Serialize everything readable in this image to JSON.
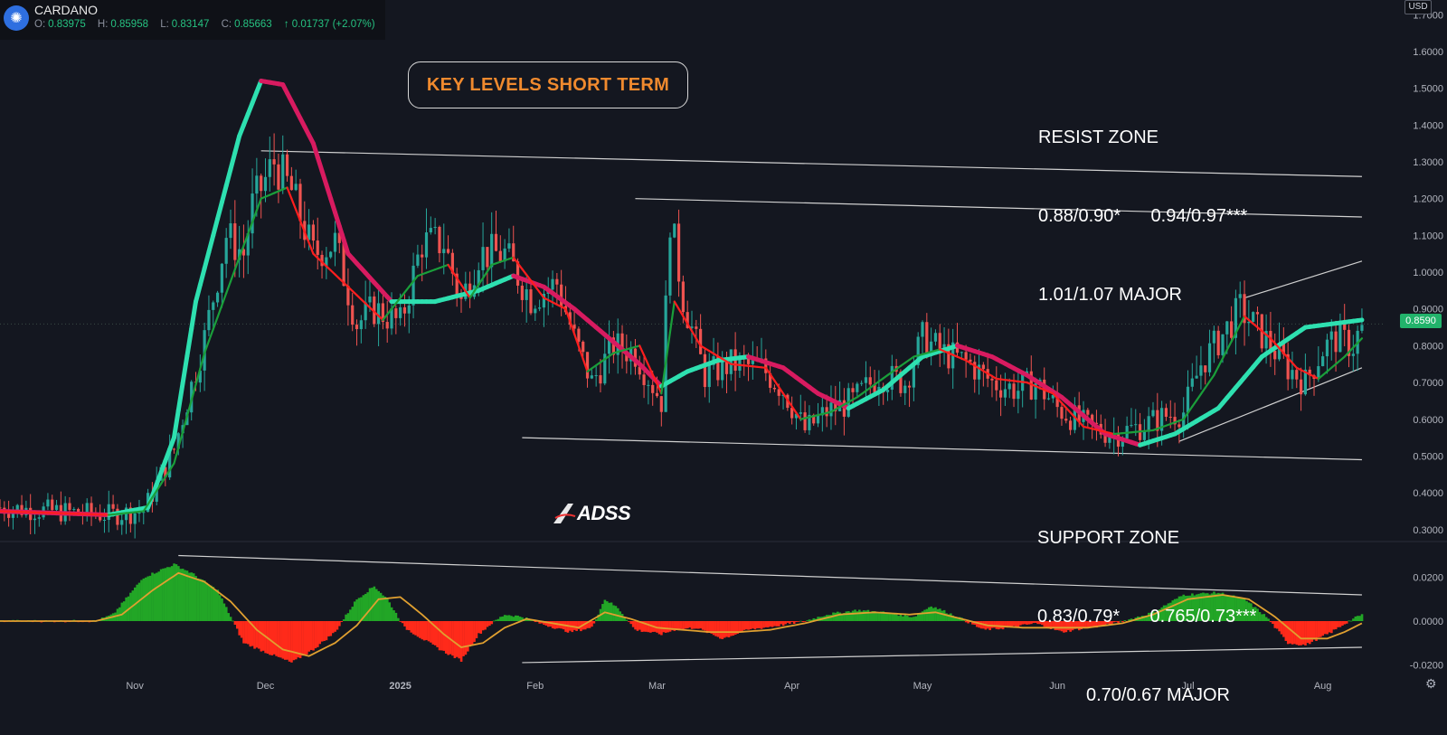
{
  "header": {
    "symbol": "CARDANO",
    "open_label": "O:",
    "open": "0.83975",
    "high_label": "H:",
    "high": "0.85958",
    "low_label": "L:",
    "low": "0.83147",
    "close_label": "C:",
    "close": "0.85663",
    "change": "↑ 0.01737 (+2.07%)",
    "logo_icon": "cardano-logo-icon"
  },
  "currency": "USD",
  "last_price": "0.8590",
  "title_box": "KEY LEVELS SHORT TERM",
  "resist_zone": {
    "title": "RESIST ZONE",
    "line1": "0.88/0.90*      0.94/0.97***",
    "line2": "1.01/1.07 MAJOR"
  },
  "support_zone": {
    "title": "SUPPORT ZONE",
    "line1": "0.83/0.79*      0.765/0.73***",
    "line2": "0.70/0.67 MAJOR"
  },
  "brand": "ADSS",
  "colors": {
    "background": "#141720",
    "up": "#26a69a",
    "down": "#ef5350",
    "fast_ma_up": "#1a9e3a",
    "fast_ma_down": "#ff1e1e",
    "slow_ma_up": "#2ee0b0",
    "slow_ma_down": "#d81b60",
    "hist_up": "#22a626",
    "hist_down": "#ff2a1a",
    "signal": "#e0a030",
    "annotation": "#ffffff",
    "title_text": "#f08a2e",
    "last_price": "#22b36b"
  },
  "chart_data": [
    {
      "type": "candlestick",
      "y_scale": "linear",
      "ylim": [
        0.27,
        1.74
      ],
      "y_ticks": [
        0.3,
        0.4,
        0.5,
        0.6,
        0.7,
        0.8,
        0.9,
        1.0,
        1.1,
        1.2,
        1.3,
        1.4,
        1.5,
        1.6,
        1.7
      ],
      "y_tick_labels": [
        "0.3000",
        "0.4000",
        "0.5000",
        "0.6000",
        "0.7000",
        "0.8000",
        "0.9000",
        "1.0000",
        "1.1000",
        "1.2000",
        "1.3000",
        "1.4000",
        "1.5000",
        "1.6000",
        "1.7000"
      ],
      "x_labels": [
        "Nov",
        "Dec",
        "2025",
        "Feb",
        "Mar",
        "Apr",
        "May",
        "Jun",
        "Jul",
        "Aug"
      ],
      "x_label_days": [
        31,
        61,
        92,
        123,
        151,
        182,
        212,
        243,
        273,
        304
      ],
      "x_range_days": [
        0,
        318
      ],
      "price_path": [
        [
          0,
          0.36
        ],
        [
          25,
          0.34
        ],
        [
          33,
          0.35
        ],
        [
          40,
          0.52
        ],
        [
          47,
          0.82
        ],
        [
          52,
          1.1
        ],
        [
          56,
          1.05
        ],
        [
          58,
          1.18
        ],
        [
          63,
          1.3
        ],
        [
          67,
          1.22
        ],
        [
          72,
          1.05
        ],
        [
          77,
          1.08
        ],
        [
          82,
          0.86
        ],
        [
          86,
          0.9
        ],
        [
          92,
          0.86
        ],
        [
          97,
          1.08
        ],
        [
          102,
          1.08
        ],
        [
          106,
          0.92
        ],
        [
          110,
          1.05
        ],
        [
          116,
          1.05
        ],
        [
          122,
          0.93
        ],
        [
          128,
          0.97
        ],
        [
          132,
          0.82
        ],
        [
          136,
          0.7
        ],
        [
          141,
          0.8
        ],
        [
          146,
          0.78
        ],
        [
          152,
          0.65
        ],
        [
          154,
          1.15
        ],
        [
          157,
          0.93
        ],
        [
          162,
          0.72
        ],
        [
          168,
          0.75
        ],
        [
          175,
          0.74
        ],
        [
          180,
          0.68
        ],
        [
          185,
          0.57
        ],
        [
          190,
          0.62
        ],
        [
          196,
          0.65
        ],
        [
          202,
          0.72
        ],
        [
          208,
          0.7
        ],
        [
          212,
          0.82
        ],
        [
          217,
          0.78
        ],
        [
          223,
          0.75
        ],
        [
          228,
          0.7
        ],
        [
          234,
          0.68
        ],
        [
          238,
          0.7
        ],
        [
          243,
          0.63
        ],
        [
          250,
          0.58
        ],
        [
          256,
          0.56
        ],
        [
          262,
          0.58
        ],
        [
          268,
          0.61
        ],
        [
          272,
          0.62
        ],
        [
          276,
          0.75
        ],
        [
          281,
          0.83
        ],
        [
          285,
          0.9
        ],
        [
          290,
          0.83
        ],
        [
          296,
          0.74
        ],
        [
          300,
          0.7
        ],
        [
          304,
          0.79
        ],
        [
          307,
          0.82
        ],
        [
          311,
          0.8
        ],
        [
          313,
          0.8566
        ]
      ],
      "slow_ma_path": [
        [
          0,
          0.35
        ],
        [
          25,
          0.34
        ],
        [
          34,
          0.36
        ],
        [
          40,
          0.55
        ],
        [
          45,
          0.92
        ],
        [
          55,
          1.37
        ],
        [
          60,
          1.52
        ],
        [
          65,
          1.51
        ],
        [
          72,
          1.35
        ],
        [
          80,
          1.05
        ],
        [
          90,
          0.92
        ],
        [
          100,
          0.92
        ],
        [
          110,
          0.95
        ],
        [
          118,
          0.99
        ],
        [
          125,
          0.96
        ],
        [
          132,
          0.9
        ],
        [
          140,
          0.82
        ],
        [
          147,
          0.75
        ],
        [
          152,
          0.69
        ],
        [
          158,
          0.73
        ],
        [
          165,
          0.76
        ],
        [
          172,
          0.77
        ],
        [
          180,
          0.74
        ],
        [
          188,
          0.67
        ],
        [
          195,
          0.63
        ],
        [
          203,
          0.68
        ],
        [
          212,
          0.77
        ],
        [
          220,
          0.8
        ],
        [
          228,
          0.77
        ],
        [
          236,
          0.72
        ],
        [
          244,
          0.66
        ],
        [
          254,
          0.56
        ],
        [
          262,
          0.53
        ],
        [
          270,
          0.56
        ],
        [
          280,
          0.63
        ],
        [
          290,
          0.77
        ],
        [
          300,
          0.85
        ],
        [
          313,
          0.87
        ]
      ],
      "fast_ma_path": [
        [
          0,
          0.35
        ],
        [
          25,
          0.34
        ],
        [
          33,
          0.35
        ],
        [
          40,
          0.48
        ],
        [
          47,
          0.78
        ],
        [
          55,
          1.04
        ],
        [
          60,
          1.2
        ],
        [
          66,
          1.23
        ],
        [
          72,
          1.05
        ],
        [
          80,
          0.96
        ],
        [
          88,
          0.87
        ],
        [
          96,
          0.99
        ],
        [
          103,
          1.02
        ],
        [
          108,
          0.93
        ],
        [
          113,
          1.02
        ],
        [
          118,
          1.04
        ],
        [
          125,
          0.93
        ],
        [
          130,
          0.9
        ],
        [
          135,
          0.73
        ],
        [
          141,
          0.78
        ],
        [
          147,
          0.8
        ],
        [
          152,
          0.67
        ],
        [
          155,
          0.92
        ],
        [
          161,
          0.8
        ],
        [
          168,
          0.75
        ],
        [
          176,
          0.74
        ],
        [
          184,
          0.6
        ],
        [
          191,
          0.62
        ],
        [
          197,
          0.66
        ],
        [
          204,
          0.72
        ],
        [
          210,
          0.77
        ],
        [
          216,
          0.79
        ],
        [
          222,
          0.76
        ],
        [
          229,
          0.71
        ],
        [
          236,
          0.7
        ],
        [
          242,
          0.67
        ],
        [
          249,
          0.58
        ],
        [
          256,
          0.56
        ],
        [
          265,
          0.57
        ],
        [
          272,
          0.6
        ],
        [
          279,
          0.72
        ],
        [
          286,
          0.88
        ],
        [
          292,
          0.82
        ],
        [
          298,
          0.74
        ],
        [
          303,
          0.71
        ],
        [
          309,
          0.77
        ],
        [
          313,
          0.82
        ]
      ],
      "trendlines": [
        {
          "from": [
            60,
            1.33
          ],
          "to": [
            313,
            1.26
          ]
        },
        {
          "from": [
            146,
            1.2
          ],
          "to": [
            313,
            1.15
          ]
        },
        {
          "from": [
            120,
            0.55
          ],
          "to": [
            313,
            0.49
          ]
        },
        {
          "from": [
            286,
            0.93
          ],
          "to": [
            313,
            1.03
          ]
        },
        {
          "from": [
            271,
            0.54
          ],
          "to": [
            313,
            0.74
          ]
        }
      ]
    },
    {
      "type": "histogram",
      "ylim": [
        -0.024,
        0.036
      ],
      "y_ticks": [
        -0.02,
        0.0,
        0.02
      ],
      "y_tick_labels": [
        "-0.0200",
        "0.0000",
        "0.0200"
      ],
      "hist_path": [
        [
          0,
          0.0
        ],
        [
          22,
          0.0
        ],
        [
          26,
          0.003
        ],
        [
          33,
          0.02
        ],
        [
          40,
          0.026
        ],
        [
          44,
          0.022
        ],
        [
          50,
          0.014
        ],
        [
          56,
          -0.01
        ],
        [
          62,
          -0.015
        ],
        [
          67,
          -0.019
        ],
        [
          72,
          -0.013
        ],
        [
          77,
          -0.005
        ],
        [
          82,
          0.01
        ],
        [
          86,
          0.016
        ],
        [
          89,
          0.01
        ],
        [
          93,
          -0.003
        ],
        [
          97,
          -0.008
        ],
        [
          102,
          -0.014
        ],
        [
          106,
          -0.018
        ],
        [
          110,
          -0.006
        ],
        [
          113,
          -0.001
        ],
        [
          116,
          0.003
        ],
        [
          120,
          0.002
        ],
        [
          124,
          -0.001
        ],
        [
          131,
          -0.005
        ],
        [
          136,
          -0.003
        ],
        [
          139,
          0.01
        ],
        [
          142,
          0.006
        ],
        [
          146,
          -0.004
        ],
        [
          152,
          -0.006
        ],
        [
          155,
          -0.004
        ],
        [
          160,
          -0.003
        ],
        [
          166,
          -0.008
        ],
        [
          172,
          -0.004
        ],
        [
          179,
          -0.002
        ],
        [
          185,
          0.0
        ],
        [
          190,
          0.003
        ],
        [
          197,
          0.005
        ],
        [
          203,
          0.004
        ],
        [
          210,
          0.002
        ],
        [
          214,
          0.007
        ],
        [
          220,
          0.002
        ],
        [
          226,
          -0.004
        ],
        [
          232,
          -0.003
        ],
        [
          238,
          -0.001
        ],
        [
          244,
          -0.005
        ],
        [
          250,
          -0.003
        ],
        [
          254,
          -0.002
        ],
        [
          260,
          0.001
        ],
        [
          265,
          0.004
        ],
        [
          272,
          0.012
        ],
        [
          280,
          0.013
        ],
        [
          286,
          0.01
        ],
        [
          291,
          0.002
        ],
        [
          296,
          -0.01
        ],
        [
          300,
          -0.011
        ],
        [
          306,
          -0.005
        ],
        [
          310,
          0.0
        ],
        [
          313,
          0.003
        ]
      ],
      "signal_path": [
        [
          0,
          0.0
        ],
        [
          22,
          0.0
        ],
        [
          28,
          0.003
        ],
        [
          35,
          0.014
        ],
        [
          41,
          0.022
        ],
        [
          47,
          0.018
        ],
        [
          53,
          0.009
        ],
        [
          59,
          -0.004
        ],
        [
          65,
          -0.013
        ],
        [
          71,
          -0.016
        ],
        [
          77,
          -0.01
        ],
        [
          82,
          -0.002
        ],
        [
          87,
          0.01
        ],
        [
          92,
          0.011
        ],
        [
          97,
          0.003
        ],
        [
          102,
          -0.006
        ],
        [
          106,
          -0.012
        ],
        [
          111,
          -0.01
        ],
        [
          116,
          -0.003
        ],
        [
          121,
          0.001
        ],
        [
          127,
          -0.001
        ],
        [
          133,
          -0.003
        ],
        [
          139,
          0.004
        ],
        [
          145,
          0.001
        ],
        [
          151,
          -0.003
        ],
        [
          157,
          -0.004
        ],
        [
          163,
          -0.005
        ],
        [
          170,
          -0.005
        ],
        [
          177,
          -0.004
        ],
        [
          185,
          -0.001
        ],
        [
          193,
          0.003
        ],
        [
          201,
          0.004
        ],
        [
          209,
          0.003
        ],
        [
          215,
          0.004
        ],
        [
          221,
          0.001
        ],
        [
          227,
          -0.002
        ],
        [
          235,
          -0.003
        ],
        [
          242,
          -0.003
        ],
        [
          250,
          -0.003
        ],
        [
          258,
          -0.001
        ],
        [
          265,
          0.003
        ],
        [
          273,
          0.01
        ],
        [
          281,
          0.012
        ],
        [
          287,
          0.01
        ],
        [
          293,
          0.002
        ],
        [
          299,
          -0.008
        ],
        [
          305,
          -0.008
        ],
        [
          309,
          -0.005
        ],
        [
          313,
          -0.001
        ]
      ],
      "trendlines": [
        {
          "from": [
            41,
            0.03
          ],
          "to": [
            313,
            0.012
          ]
        },
        {
          "from": [
            120,
            -0.019
          ],
          "to": [
            313,
            -0.012
          ]
        }
      ]
    }
  ]
}
